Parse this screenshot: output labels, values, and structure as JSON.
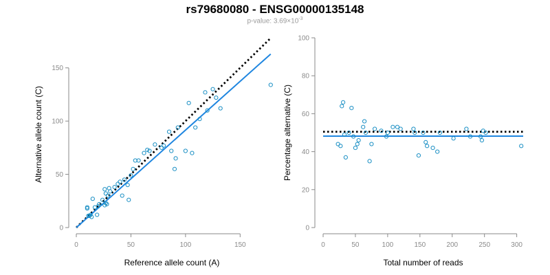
{
  "figure": {
    "title": "rs79680080 - ENSG00000135148",
    "subtitle_prefix": "p-value: 3.69×10",
    "subtitle_exponent": "-3"
  },
  "colors": {
    "points": "#1a8fc4",
    "fit_line": "#1f86e0",
    "reference_line": "#000000",
    "axis": "#8a8a8a"
  },
  "chart_data": [
    {
      "type": "scatter",
      "xlabel": "Reference allele count (A)",
      "ylabel": "Alternative allele count (C)",
      "xlim": [
        0,
        175
      ],
      "ylim": [
        0,
        175
      ],
      "xticks": [
        0,
        50,
        100,
        150
      ],
      "yticks": [
        0,
        50,
        100,
        150
      ],
      "grid": false,
      "points": [
        [
          10,
          18
        ],
        [
          10,
          19
        ],
        [
          11,
          11
        ],
        [
          12,
          11
        ],
        [
          13,
          12
        ],
        [
          14,
          10
        ],
        [
          15,
          27
        ],
        [
          17,
          19
        ],
        [
          19,
          12
        ],
        [
          20,
          20
        ],
        [
          21,
          22
        ],
        [
          24,
          26
        ],
        [
          26,
          21
        ],
        [
          26,
          36
        ],
        [
          27,
          32
        ],
        [
          27,
          23
        ],
        [
          28,
          22
        ],
        [
          29,
          30
        ],
        [
          30,
          37
        ],
        [
          31,
          34
        ],
        [
          35,
          38
        ],
        [
          38,
          41
        ],
        [
          40,
          43
        ],
        [
          42,
          30
        ],
        [
          44,
          45
        ],
        [
          47,
          40
        ],
        [
          48,
          26
        ],
        [
          50,
          49
        ],
        [
          52,
          55
        ],
        [
          54,
          63
        ],
        [
          57,
          63
        ],
        [
          62,
          70
        ],
        [
          65,
          73
        ],
        [
          67,
          72
        ],
        [
          72,
          78
        ],
        [
          78,
          75
        ],
        [
          80,
          77
        ],
        [
          85,
          90
        ],
        [
          87,
          72
        ],
        [
          90,
          55
        ],
        [
          91,
          65
        ],
        [
          93,
          94
        ],
        [
          100,
          72
        ],
        [
          103,
          117
        ],
        [
          106,
          70
        ],
        [
          109,
          94
        ],
        [
          113,
          102
        ],
        [
          118,
          127
        ],
        [
          120,
          110
        ],
        [
          125,
          130
        ],
        [
          128,
          122
        ],
        [
          132,
          112
        ],
        [
          178,
          134
        ]
      ],
      "fit_line": [
        [
          0,
          0
        ],
        [
          178,
          163
        ]
      ],
      "reference_line": [
        [
          0,
          0
        ],
        [
          178,
          178
        ]
      ]
    },
    {
      "type": "scatter",
      "xlabel": "Total number of reads",
      "ylabel": "Percentage alternative (C)",
      "xlim": [
        0,
        310
      ],
      "ylim": [
        0,
        100
      ],
      "xticks": [
        0,
        50,
        100,
        150,
        200,
        250,
        300
      ],
      "yticks": [
        0,
        20,
        40,
        60,
        80,
        100
      ],
      "grid": false,
      "points": [
        [
          23,
          44
        ],
        [
          27,
          43
        ],
        [
          29,
          64
        ],
        [
          31,
          66
        ],
        [
          33,
          49
        ],
        [
          35,
          37
        ],
        [
          40,
          50
        ],
        [
          44,
          63
        ],
        [
          47,
          48
        ],
        [
          50,
          42
        ],
        [
          53,
          44
        ],
        [
          55,
          46
        ],
        [
          62,
          53
        ],
        [
          64,
          56
        ],
        [
          66,
          50
        ],
        [
          72,
          35
        ],
        [
          75,
          44
        ],
        [
          80,
          52
        ],
        [
          90,
          51
        ],
        [
          98,
          48
        ],
        [
          100,
          50
        ],
        [
          108,
          53
        ],
        [
          115,
          53
        ],
        [
          120,
          52
        ],
        [
          140,
          52
        ],
        [
          142,
          50
        ],
        [
          148,
          38
        ],
        [
          155,
          50
        ],
        [
          159,
          45
        ],
        [
          161,
          43
        ],
        [
          170,
          42
        ],
        [
          177,
          40
        ],
        [
          181,
          50
        ],
        [
          202,
          47
        ],
        [
          222,
          52
        ],
        [
          228,
          48
        ],
        [
          244,
          48
        ],
        [
          246,
          46
        ],
        [
          248,
          51
        ],
        [
          252,
          50
        ],
        [
          307,
          43
        ]
      ],
      "fit_line": [
        [
          0,
          48.2
        ],
        [
          310,
          48.2
        ]
      ],
      "reference_line": [
        [
          0,
          50.5
        ],
        [
          310,
          50.5
        ]
      ]
    }
  ]
}
